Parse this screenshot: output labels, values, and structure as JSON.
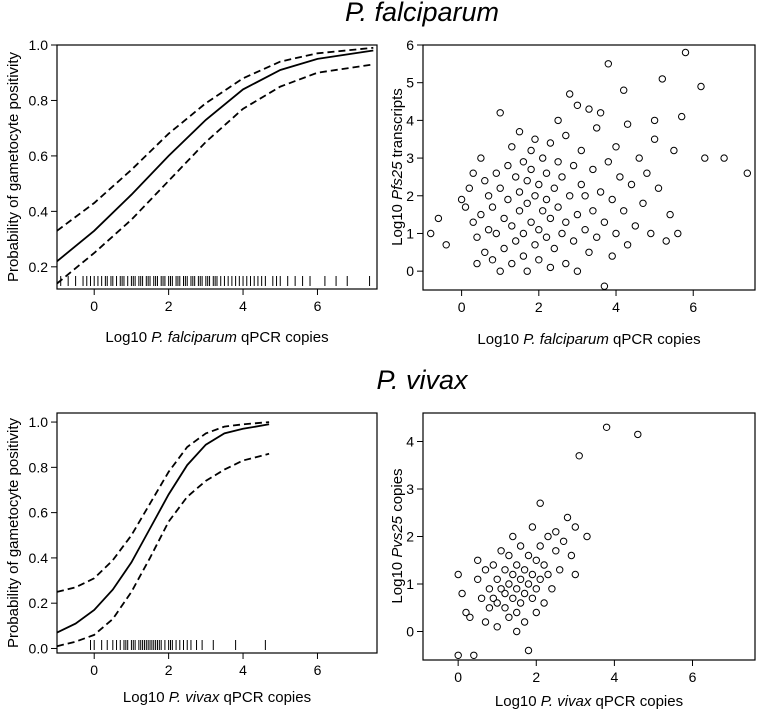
{
  "chart_data": [
    {
      "id": "pf_logistic",
      "type": "line",
      "section_title": "P. falciparum",
      "xlabel": {
        "prefix": "Log10 ",
        "species": "P. falciparum",
        "suffix": " qPCR copies"
      },
      "ylabel": "Probability of gametocyte positivity",
      "xlim": [
        -1,
        7.6
      ],
      "ylim": [
        0.12,
        1.0
      ],
      "xticks": [
        0,
        2,
        4,
        6
      ],
      "yticks": [
        0.2,
        0.4,
        0.6,
        0.8,
        1.0
      ],
      "series": [
        {
          "name": "fit",
          "style": "solid",
          "x": [
            -1,
            0,
            1,
            2,
            3,
            4,
            5,
            6,
            7.5
          ],
          "y": [
            0.22,
            0.33,
            0.46,
            0.6,
            0.73,
            0.84,
            0.91,
            0.95,
            0.98
          ]
        },
        {
          "name": "upper 95% CI",
          "style": "dashed",
          "x": [
            -1,
            0,
            1,
            2,
            3,
            4,
            5,
            6,
            7.5
          ],
          "y": [
            0.33,
            0.43,
            0.55,
            0.68,
            0.79,
            0.88,
            0.94,
            0.97,
            0.99
          ]
        },
        {
          "name": "lower 95% CI",
          "style": "dashed",
          "x": [
            -1,
            0,
            1,
            2,
            3,
            4,
            5,
            6,
            7.5
          ],
          "y": [
            0.14,
            0.25,
            0.37,
            0.51,
            0.65,
            0.77,
            0.85,
            0.9,
            0.93
          ]
        }
      ],
      "rug": [
        -0.9,
        -0.7,
        -0.5,
        -0.3,
        -0.2,
        -0.1,
        0.0,
        0.1,
        0.2,
        0.3,
        0.35,
        0.45,
        0.5,
        0.6,
        0.7,
        0.75,
        0.8,
        0.9,
        1.0,
        1.05,
        1.1,
        1.2,
        1.25,
        1.3,
        1.4,
        1.45,
        1.5,
        1.6,
        1.65,
        1.7,
        1.8,
        1.85,
        1.9,
        2.0,
        2.05,
        2.1,
        2.2,
        2.25,
        2.3,
        2.4,
        2.45,
        2.5,
        2.6,
        2.65,
        2.7,
        2.8,
        2.85,
        2.9,
        3.0,
        3.05,
        3.1,
        3.2,
        3.25,
        3.3,
        3.4,
        3.5,
        3.6,
        3.7,
        3.8,
        3.9,
        4.0,
        4.1,
        4.2,
        4.3,
        4.4,
        4.5,
        4.6,
        4.8,
        4.9,
        5.0,
        5.2,
        5.4,
        5.6,
        5.8,
        6.2,
        6.5,
        6.8,
        7.4
      ]
    },
    {
      "id": "pf_scatter",
      "type": "scatter",
      "xlabel": {
        "prefix": "Log10 ",
        "species": "P. falciparum",
        "suffix": " qPCR copies"
      },
      "ylabel": {
        "prefix": "Log10 ",
        "species": "Pfs25",
        "suffix": " transcripts"
      },
      "xlim": [
        -1,
        7.6
      ],
      "ylim": [
        -0.5,
        6.0
      ],
      "xticks": [
        0,
        2,
        4,
        6
      ],
      "yticks": [
        0,
        1,
        2,
        3,
        4,
        5,
        6
      ],
      "points": [
        [
          -0.8,
          1.0
        ],
        [
          -0.6,
          1.4
        ],
        [
          -0.4,
          0.7
        ],
        [
          0.0,
          1.9
        ],
        [
          0.1,
          1.7
        ],
        [
          0.2,
          2.2
        ],
        [
          0.3,
          1.3
        ],
        [
          0.3,
          2.6
        ],
        [
          0.4,
          0.2
        ],
        [
          0.4,
          0.9
        ],
        [
          0.5,
          1.5
        ],
        [
          0.5,
          3.0
        ],
        [
          0.6,
          2.4
        ],
        [
          0.6,
          0.5
        ],
        [
          0.7,
          1.1
        ],
        [
          0.7,
          2.0
        ],
        [
          0.8,
          0.3
        ],
        [
          0.8,
          1.7
        ],
        [
          0.9,
          2.6
        ],
        [
          0.9,
          1.0
        ],
        [
          1.0,
          0.0
        ],
        [
          1.0,
          2.2
        ],
        [
          1.0,
          4.2
        ],
        [
          1.1,
          1.4
        ],
        [
          1.1,
          0.6
        ],
        [
          1.2,
          2.8
        ],
        [
          1.2,
          1.9
        ],
        [
          1.3,
          0.2
        ],
        [
          1.3,
          3.3
        ],
        [
          1.3,
          1.2
        ],
        [
          1.4,
          2.5
        ],
        [
          1.4,
          0.8
        ],
        [
          1.5,
          1.6
        ],
        [
          1.5,
          2.1
        ],
        [
          1.5,
          3.7
        ],
        [
          1.6,
          0.4
        ],
        [
          1.6,
          2.9
        ],
        [
          1.6,
          1.0
        ],
        [
          1.7,
          1.8
        ],
        [
          1.7,
          2.4
        ],
        [
          1.7,
          0.0
        ],
        [
          1.8,
          3.2
        ],
        [
          1.8,
          1.3
        ],
        [
          1.8,
          2.7
        ],
        [
          1.9,
          0.7
        ],
        [
          1.9,
          2.0
        ],
        [
          1.9,
          3.5
        ],
        [
          2.0,
          1.1
        ],
        [
          2.0,
          2.3
        ],
        [
          2.0,
          0.3
        ],
        [
          2.1,
          1.6
        ],
        [
          2.1,
          3.0
        ],
        [
          2.2,
          0.9
        ],
        [
          2.2,
          2.6
        ],
        [
          2.2,
          1.9
        ],
        [
          2.3,
          3.4
        ],
        [
          2.3,
          0.1
        ],
        [
          2.3,
          1.4
        ],
        [
          2.4,
          2.2
        ],
        [
          2.4,
          0.6
        ],
        [
          2.5,
          2.9
        ],
        [
          2.5,
          1.7
        ],
        [
          2.5,
          4.0
        ],
        [
          2.6,
          1.0
        ],
        [
          2.6,
          2.5
        ],
        [
          2.7,
          0.2
        ],
        [
          2.7,
          3.6
        ],
        [
          2.7,
          1.3
        ],
        [
          2.8,
          4.7
        ],
        [
          2.8,
          2.0
        ],
        [
          2.9,
          0.8
        ],
        [
          2.9,
          2.8
        ],
        [
          3.0,
          1.5
        ],
        [
          3.0,
          4.4
        ],
        [
          3.0,
          0.0
        ],
        [
          3.1,
          2.3
        ],
        [
          3.1,
          3.2
        ],
        [
          3.2,
          1.1
        ],
        [
          3.2,
          2.0
        ],
        [
          3.3,
          4.3
        ],
        [
          3.3,
          0.5
        ],
        [
          3.4,
          2.7
        ],
        [
          3.4,
          1.6
        ],
        [
          3.5,
          3.8
        ],
        [
          3.5,
          0.9
        ],
        [
          3.6,
          2.1
        ],
        [
          3.6,
          4.2
        ],
        [
          3.7,
          1.3
        ],
        [
          3.7,
          -0.4
        ],
        [
          3.8,
          5.5
        ],
        [
          3.8,
          2.9
        ],
        [
          3.9,
          1.9
        ],
        [
          3.9,
          0.4
        ],
        [
          4.0,
          3.3
        ],
        [
          4.0,
          1.0
        ],
        [
          4.1,
          2.5
        ],
        [
          4.2,
          4.8
        ],
        [
          4.2,
          1.6
        ],
        [
          4.3,
          3.9
        ],
        [
          4.3,
          0.7
        ],
        [
          4.4,
          2.3
        ],
        [
          4.5,
          1.2
        ],
        [
          4.6,
          3.0
        ],
        [
          4.7,
          1.8
        ],
        [
          4.8,
          2.6
        ],
        [
          4.9,
          1.0
        ],
        [
          5.0,
          4.0
        ],
        [
          5.0,
          3.5
        ],
        [
          5.1,
          2.2
        ],
        [
          5.2,
          5.1
        ],
        [
          5.3,
          0.8
        ],
        [
          5.4,
          1.5
        ],
        [
          5.5,
          3.2
        ],
        [
          5.6,
          1.0
        ],
        [
          5.7,
          4.1
        ],
        [
          5.8,
          5.8
        ],
        [
          6.2,
          4.9
        ],
        [
          6.3,
          3.0
        ],
        [
          6.8,
          3.0
        ],
        [
          7.4,
          2.6
        ]
      ]
    },
    {
      "id": "pv_logistic",
      "type": "line",
      "section_title": "P. vivax",
      "xlabel": {
        "prefix": "Log10 ",
        "species": "P. vivax",
        "suffix": " qPCR copies"
      },
      "ylabel": "Probability of gametocyte positivity",
      "xlim": [
        -1,
        7.6
      ],
      "ylim": [
        -0.02,
        1.04
      ],
      "xticks": [
        0,
        2,
        4,
        6
      ],
      "yticks": [
        0.0,
        0.2,
        0.4,
        0.6,
        0.8,
        1.0
      ],
      "series": [
        {
          "name": "fit",
          "style": "solid",
          "x": [
            -1,
            -0.5,
            0,
            0.5,
            1,
            1.5,
            2,
            2.5,
            3,
            3.5,
            4,
            4.7
          ],
          "y": [
            0.07,
            0.11,
            0.17,
            0.26,
            0.38,
            0.53,
            0.68,
            0.81,
            0.9,
            0.95,
            0.97,
            0.99
          ]
        },
        {
          "name": "upper 95% CI",
          "style": "dashed",
          "x": [
            -1,
            -0.5,
            0,
            0.5,
            1,
            1.5,
            2,
            2.5,
            3,
            3.5,
            4,
            4.7
          ],
          "y": [
            0.25,
            0.27,
            0.31,
            0.39,
            0.5,
            0.64,
            0.78,
            0.89,
            0.95,
            0.98,
            0.99,
            1.0
          ]
        },
        {
          "name": "lower 95% CI",
          "style": "dashed",
          "x": [
            -1,
            -0.5,
            0,
            0.5,
            1,
            1.5,
            2,
            2.5,
            3,
            3.5,
            4,
            4.7
          ],
          "y": [
            0.01,
            0.03,
            0.06,
            0.13,
            0.25,
            0.4,
            0.56,
            0.67,
            0.74,
            0.79,
            0.83,
            0.86
          ]
        }
      ],
      "rug": [
        -0.1,
        0.0,
        0.2,
        0.35,
        0.5,
        0.6,
        0.7,
        0.8,
        0.85,
        0.9,
        1.0,
        1.05,
        1.1,
        1.2,
        1.25,
        1.3,
        1.35,
        1.4,
        1.45,
        1.5,
        1.55,
        1.6,
        1.65,
        1.7,
        1.75,
        1.8,
        1.9,
        2.0,
        2.05,
        2.1,
        2.2,
        2.3,
        2.4,
        2.5,
        2.6,
        2.75,
        2.9,
        3.2,
        3.8,
        4.6
      ]
    },
    {
      "id": "pv_scatter",
      "type": "scatter",
      "xlabel": {
        "prefix": "Log10 ",
        "species": "P. vivax",
        "suffix": " qPCR copies"
      },
      "ylabel": {
        "prefix": "Log10 ",
        "species": "Pvs25",
        "suffix": " copies"
      },
      "xlim": [
        -0.9,
        7.6
      ],
      "ylim": [
        -0.6,
        4.6
      ],
      "xticks": [
        0,
        2,
        4,
        6
      ],
      "yticks": [
        0,
        1,
        2,
        3,
        4
      ],
      "points": [
        [
          0.0,
          1.2
        ],
        [
          0.0,
          -0.5
        ],
        [
          0.1,
          0.8
        ],
        [
          0.2,
          0.4
        ],
        [
          0.3,
          0.3
        ],
        [
          0.4,
          -0.5
        ],
        [
          0.5,
          1.5
        ],
        [
          0.5,
          1.1
        ],
        [
          0.6,
          0.7
        ],
        [
          0.7,
          0.2
        ],
        [
          0.7,
          1.3
        ],
        [
          0.8,
          0.9
        ],
        [
          0.8,
          0.5
        ],
        [
          0.9,
          1.4
        ],
        [
          0.9,
          0.7
        ],
        [
          1.0,
          0.6
        ],
        [
          1.0,
          1.1
        ],
        [
          1.0,
          0.1
        ],
        [
          1.1,
          0.9
        ],
        [
          1.1,
          1.7
        ],
        [
          1.2,
          0.8
        ],
        [
          1.2,
          1.3
        ],
        [
          1.2,
          0.5
        ],
        [
          1.3,
          1.0
        ],
        [
          1.3,
          0.3
        ],
        [
          1.3,
          1.6
        ],
        [
          1.4,
          0.7
        ],
        [
          1.4,
          1.2
        ],
        [
          1.4,
          2.0
        ],
        [
          1.5,
          0.9
        ],
        [
          1.5,
          0.4
        ],
        [
          1.5,
          1.4
        ],
        [
          1.5,
          0.0
        ],
        [
          1.6,
          1.1
        ],
        [
          1.6,
          0.6
        ],
        [
          1.6,
          1.8
        ],
        [
          1.7,
          0.8
        ],
        [
          1.7,
          1.3
        ],
        [
          1.7,
          0.2
        ],
        [
          1.8,
          1.0
        ],
        [
          1.8,
          1.6
        ],
        [
          1.8,
          -0.4
        ],
        [
          1.9,
          0.7
        ],
        [
          1.9,
          1.2
        ],
        [
          1.9,
          2.2
        ],
        [
          2.0,
          0.9
        ],
        [
          2.0,
          1.5
        ],
        [
          2.0,
          0.4
        ],
        [
          2.1,
          1.1
        ],
        [
          2.1,
          2.7
        ],
        [
          2.1,
          1.8
        ],
        [
          2.2,
          1.4
        ],
        [
          2.2,
          0.6
        ],
        [
          2.3,
          2.0
        ],
        [
          2.3,
          1.2
        ],
        [
          2.4,
          0.9
        ],
        [
          2.5,
          1.7
        ],
        [
          2.5,
          2.1
        ],
        [
          2.6,
          1.3
        ],
        [
          2.7,
          1.9
        ],
        [
          2.8,
          2.4
        ],
        [
          2.9,
          1.6
        ],
        [
          3.0,
          2.2
        ],
        [
          3.0,
          1.2
        ],
        [
          3.1,
          3.7
        ],
        [
          3.3,
          2.0
        ],
        [
          3.8,
          4.3
        ],
        [
          4.6,
          4.15
        ]
      ]
    }
  ]
}
